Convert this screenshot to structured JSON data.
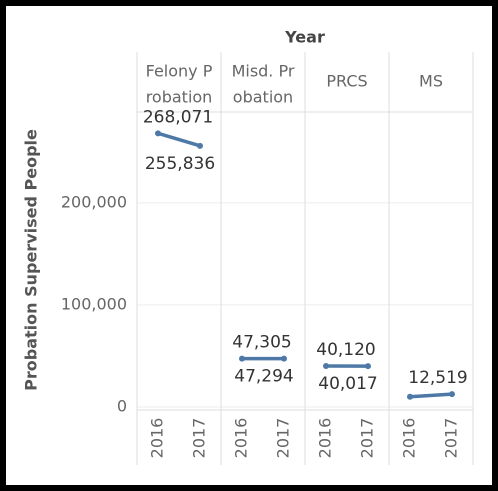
{
  "chart_data": {
    "type": "line",
    "title": "Year",
    "y_label": "Probation Supervised People",
    "color": "#4e79a7",
    "x": [
      "2016",
      "2017"
    ],
    "series": [
      {
        "name": [
          "Felony P",
          "robation"
        ],
        "values": [
          268071,
          255836
        ],
        "value_labels": [
          "268,071",
          "255,836"
        ]
      },
      {
        "name": [
          "Misd. Pr",
          "obation"
        ],
        "values": [
          47305,
          47294
        ],
        "value_labels": [
          "47,305",
          "47,294"
        ]
      },
      {
        "name": [
          "PRCS"
        ],
        "values": [
          40120,
          40017
        ],
        "value_labels": [
          "40,120",
          "40,017"
        ]
      },
      {
        "name": [
          "MS"
        ],
        "values": [
          10000,
          12519
        ],
        "value_labels": [
          null,
          "12,519"
        ]
      }
    ],
    "ylim": [
      -3000,
      289000
    ],
    "yticks": [
      0,
      {
        "value": 100000,
        "label": "100,000"
      },
      {
        "value": 200000,
        "label": "200,000"
      }
    ],
    "grid": true
  }
}
